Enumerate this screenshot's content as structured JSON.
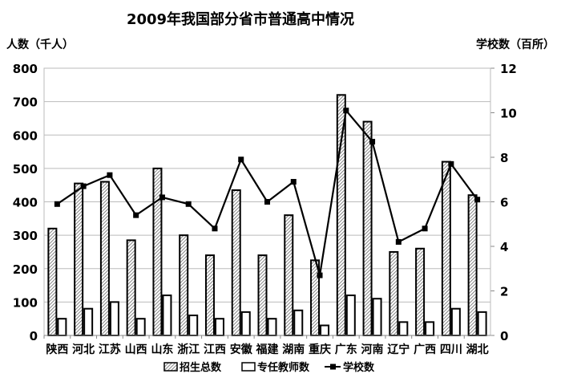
{
  "chart_data": {
    "type": "bar+line",
    "title": "2009年我国部分省市普通高中情况",
    "ylabel_left": "人数（千人）",
    "ylabel_right": "学校数（百所）",
    "ylim_left": [
      0,
      800
    ],
    "yticks_left": [
      0,
      100,
      200,
      300,
      400,
      500,
      600,
      700,
      800
    ],
    "ylim_right": [
      0,
      12
    ],
    "yticks_right": [
      0,
      2,
      4,
      6,
      8,
      10,
      12
    ],
    "grid": true,
    "legend_position": "bottom",
    "categories": [
      "陕西",
      "河北",
      "江苏",
      "山西",
      "山东",
      "浙江",
      "江西",
      "安徽",
      "福建",
      "湖南",
      "重庆",
      "广东",
      "河南",
      "辽宁",
      "广西",
      "四川",
      "湖北"
    ],
    "series": [
      {
        "name": "招生总数",
        "type": "bar",
        "axis": "left",
        "values": [
          320,
          455,
          460,
          285,
          500,
          300,
          240,
          435,
          240,
          360,
          225,
          720,
          640,
          250,
          260,
          520,
          420
        ]
      },
      {
        "name": "专任教师数",
        "type": "bar",
        "axis": "left",
        "values": [
          50,
          80,
          100,
          50,
          120,
          60,
          50,
          70,
          50,
          75,
          30,
          120,
          110,
          40,
          40,
          80,
          70
        ]
      },
      {
        "name": "学校数",
        "type": "line",
        "axis": "right",
        "values": [
          5.9,
          6.7,
          7.2,
          5.4,
          6.2,
          5.9,
          4.8,
          7.9,
          6.0,
          6.9,
          2.7,
          10.1,
          8.7,
          4.2,
          4.8,
          7.7,
          6.1
        ]
      }
    ]
  }
}
